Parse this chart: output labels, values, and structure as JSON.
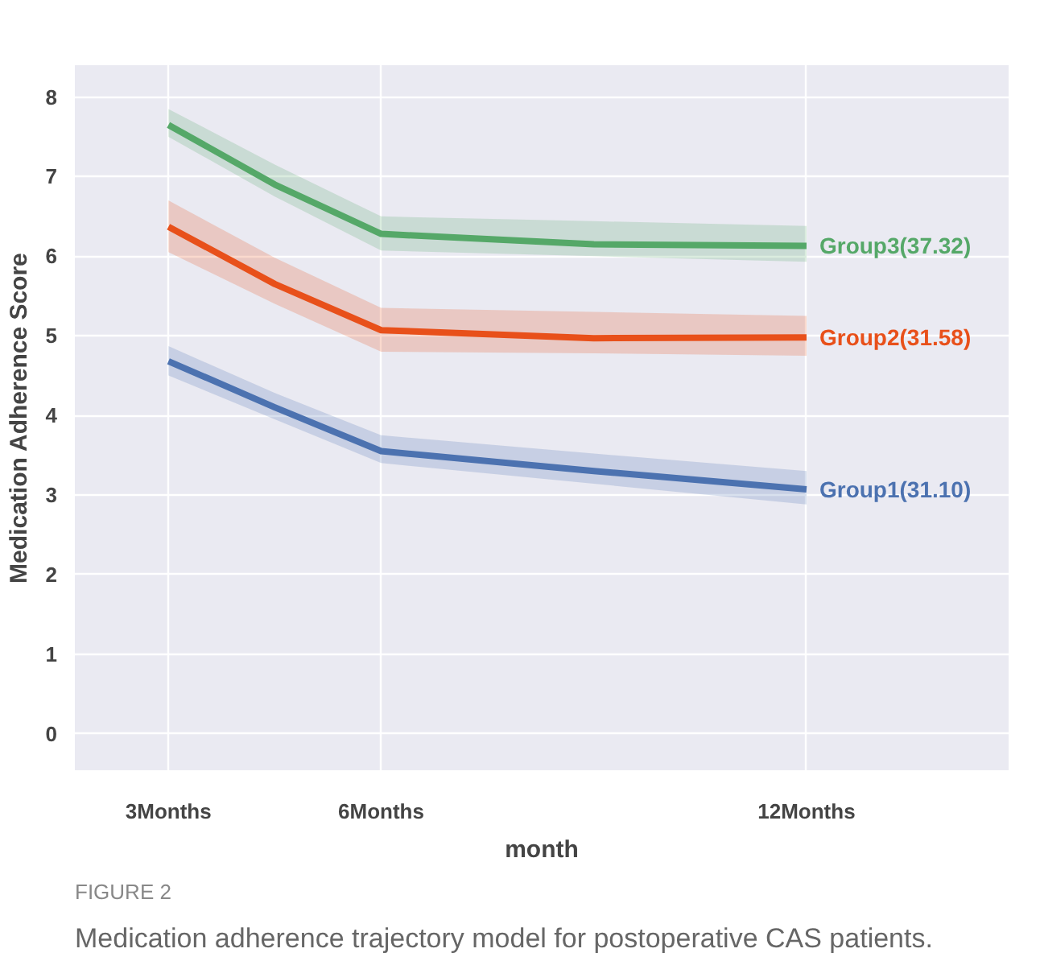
{
  "chart_data": {
    "type": "line",
    "xlabel": "month",
    "ylabel": "Medication Adherence Score",
    "x": [
      3,
      4.5,
      6,
      9,
      12
    ],
    "xlim": [
      1.68,
      14.85
    ],
    "ylim": [
      -0.46,
      8.4
    ],
    "xticks": [
      {
        "value": 3,
        "label": "3Months"
      },
      {
        "value": 6,
        "label": "6Months"
      },
      {
        "value": 12,
        "label": "12Months"
      }
    ],
    "yticks": [
      0,
      1,
      2,
      3,
      4,
      5,
      6,
      7,
      8
    ],
    "grid": true,
    "line_style": "solid",
    "series": [
      {
        "name": "Group3(37.32)",
        "color": "#55a868",
        "values": [
          7.65,
          6.9,
          6.28,
          6.15,
          6.13
        ],
        "lower": [
          7.5,
          6.75,
          6.07,
          6.0,
          5.93
        ],
        "upper": [
          7.85,
          7.15,
          6.5,
          6.44,
          6.38
        ]
      },
      {
        "name": "Group2(31.58)",
        "color": "#e8501a",
        "values": [
          6.37,
          5.65,
          5.07,
          4.97,
          4.98
        ],
        "lower": [
          6.05,
          5.4,
          4.8,
          4.78,
          4.75
        ],
        "upper": [
          6.7,
          5.98,
          5.35,
          5.3,
          5.25
        ]
      },
      {
        "name": "Group1(31.10)",
        "color": "#4c72b0",
        "values": [
          4.68,
          4.1,
          3.55,
          3.3,
          3.07
        ],
        "lower": [
          4.5,
          3.95,
          3.4,
          3.14,
          2.88
        ],
        "upper": [
          4.87,
          4.28,
          3.75,
          3.52,
          3.3
        ]
      }
    ],
    "annotations": [
      "FIGURE 2",
      "Medication adherence trajectory model for postoperative CAS patients."
    ]
  }
}
